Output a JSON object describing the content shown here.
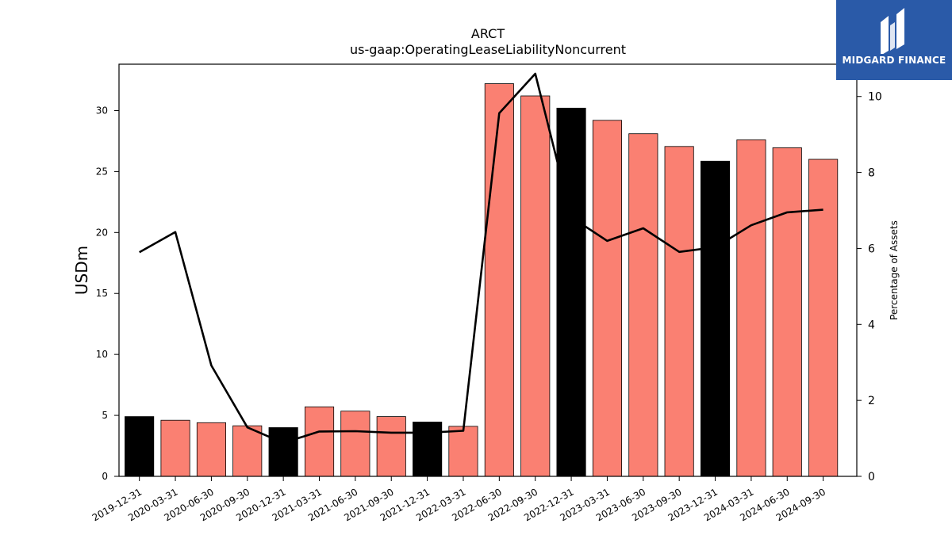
{
  "brand": {
    "name": "MIDGARD FINANCE",
    "color": "#2a5aa8"
  },
  "chart_data": {
    "type": "bar",
    "title": "ARCT",
    "subtitle": "us-gaap:OperatingLeaseLiabilityNoncurrent",
    "ylabel": "USDm",
    "y2label": "Percentage of Assets",
    "ylim": [
      0,
      33.8
    ],
    "y2lim": [
      0,
      10.85
    ],
    "yticks": [
      0,
      5,
      10,
      15,
      20,
      25,
      30
    ],
    "y2ticks": [
      0,
      2,
      4,
      6,
      8,
      10
    ],
    "categories": [
      "2019-12-31",
      "2020-03-31",
      "2020-06-30",
      "2020-09-30",
      "2020-12-31",
      "2021-03-31",
      "2021-06-30",
      "2021-09-30",
      "2021-12-31",
      "2022-03-31",
      "2022-06-30",
      "2022-09-30",
      "2022-12-31",
      "2023-03-31",
      "2023-06-30",
      "2023-09-30",
      "2023-12-31",
      "2024-03-31",
      "2024-06-30",
      "2024-09-30"
    ],
    "series": [
      {
        "type": "bar",
        "axis": "left",
        "values": [
          4.9,
          4.6,
          4.4,
          4.15,
          4.0,
          5.7,
          5.35,
          4.9,
          4.45,
          4.1,
          32.2,
          31.2,
          30.2,
          29.2,
          28.1,
          27.05,
          25.85,
          27.6,
          26.95,
          26.0
        ],
        "highlight": [
          true,
          false,
          false,
          false,
          true,
          false,
          false,
          false,
          true,
          false,
          false,
          false,
          true,
          false,
          false,
          false,
          true,
          false,
          false,
          false
        ],
        "color": "#fa8072",
        "highlight_color": "#000000"
      },
      {
        "type": "line",
        "axis": "right",
        "values": [
          5.9,
          6.43,
          2.92,
          1.29,
          0.88,
          1.18,
          1.19,
          1.15,
          1.15,
          1.2,
          9.56,
          10.6,
          6.82,
          6.2,
          6.53,
          5.91,
          6.03,
          6.61,
          6.95,
          7.02
        ],
        "color": "#000000"
      }
    ]
  }
}
